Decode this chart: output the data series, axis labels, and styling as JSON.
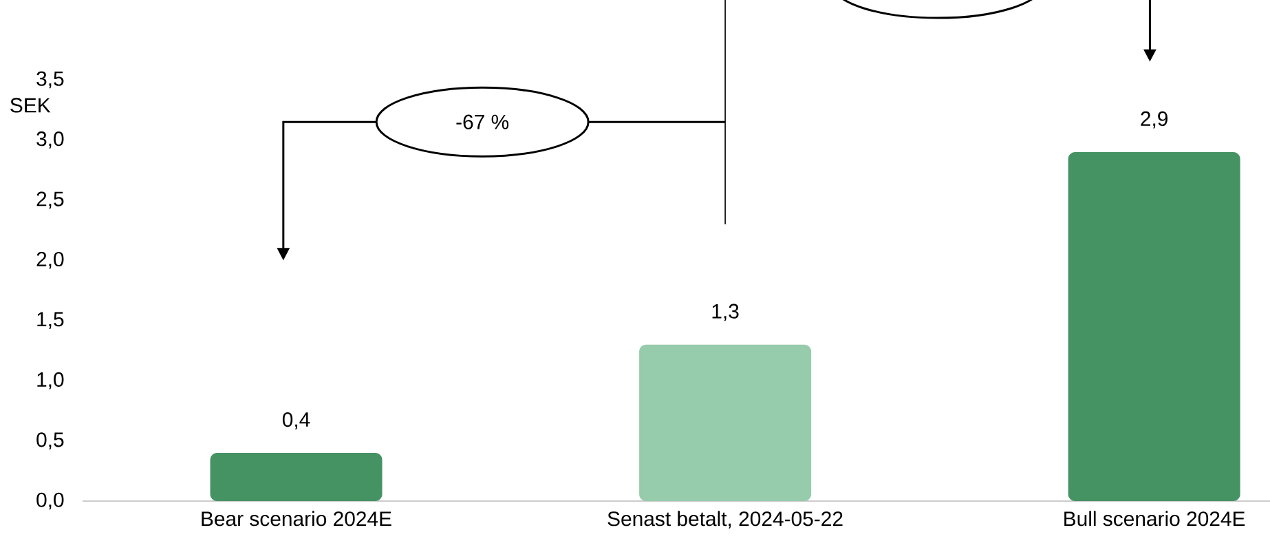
{
  "chart_data": {
    "type": "bar",
    "ylabel": "SEK",
    "categories": [
      "Bear scenario 2024E",
      "Senast betalt, 2024-05-22",
      "Bull scenario 2024E"
    ],
    "values": [
      0.4,
      1.3,
      2.9
    ],
    "colors": [
      "#459263",
      "#96cbab",
      "#459263"
    ],
    "value_labels": [
      "0,4",
      "1,3",
      "2,9"
    ],
    "ylim": [
      0,
      3.5
    ],
    "yticks": [
      {
        "value": 0,
        "label": "0,0"
      },
      {
        "value": 0.5,
        "label": "0,5"
      },
      {
        "value": 1,
        "label": "1,0"
      },
      {
        "value": 1.5,
        "label": "1,5"
      },
      {
        "value": 2,
        "label": "2,0"
      },
      {
        "value": 2.5,
        "label": "2,5"
      },
      {
        "value": 3,
        "label": "3,0"
      },
      {
        "value": 3.5,
        "label": "3,5"
      }
    ],
    "annotations": [
      "-67 %"
    ],
    "grid": false
  }
}
